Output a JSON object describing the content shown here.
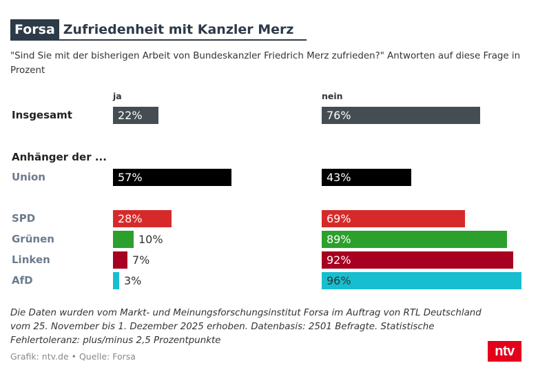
{
  "header": {
    "tag": "Forsa",
    "title": "Zufriedenheit mit Kanzler Merz",
    "subtitle": "\"Sind Sie mit der bisherigen Arbeit von Bundeskanzler Friedrich Merz zufrieden?\" Antworten auf diese Frage in Prozent"
  },
  "chart_data": {
    "type": "bar",
    "orientation": "horizontal",
    "title": "Zufriedenheit mit Kanzler Merz",
    "unit": "%",
    "series": [
      {
        "name": "ja"
      },
      {
        "name": "nein"
      }
    ],
    "group_label": "Anhänger der ...",
    "rows": [
      {
        "label": "Insgesamt",
        "label_color": "#222222",
        "ja": 22,
        "nein": 76,
        "color": "#444d52",
        "ja_text": "22%",
        "nein_text": "76%",
        "ja_label_color": "#ffffff",
        "nein_label_color": "#ffffff"
      },
      {
        "label": "Union",
        "label_color": "#6b7b8c",
        "ja": 57,
        "nein": 43,
        "color": "#000000",
        "ja_text": "57%",
        "nein_text": "43%",
        "ja_label_color": "#ffffff",
        "nein_label_color": "#ffffff"
      },
      {
        "label": "SPD",
        "label_color": "#6b7b8c",
        "ja": 28,
        "nein": 69,
        "color": "#d62a2a",
        "ja_text": "28%",
        "nein_text": "69%",
        "ja_label_color": "#ffffff",
        "nein_label_color": "#ffffff"
      },
      {
        "label": "Grünen",
        "label_color": "#6b7b8c",
        "ja": 10,
        "nein": 89,
        "color": "#2ca02c",
        "ja_text": "10%",
        "nein_text": "89%",
        "ja_label_color": "#333333",
        "nein_label_color": "#ffffff"
      },
      {
        "label": "Linken",
        "label_color": "#6b7b8c",
        "ja": 7,
        "nein": 92,
        "color": "#a80020",
        "ja_text": "7%",
        "nein_text": "92%",
        "ja_label_color": "#333333",
        "nein_label_color": "#ffffff"
      },
      {
        "label": "AfD",
        "label_color": "#6b7b8c",
        "ja": 3,
        "nein": 96,
        "color": "#17becf",
        "ja_text": "3%",
        "nein_text": "96%",
        "ja_label_color": "#333333",
        "nein_label_color": "#333333"
      }
    ],
    "xlim": [
      0,
      100
    ]
  },
  "footer": {
    "note": "Die Daten wurden vom Markt- und Meinungsforschungsinstitut Forsa im Auftrag von RTL Deutschland vom 25. November bis 1. Dezember 2025 erhoben. Datenbasis: 2501 Befragte. Statistische Fehlertoleranz: plus/minus 2,5 Prozentpunkte",
    "credit": "Grafik: ntv.de • Quelle: Forsa",
    "logo": "ntv"
  }
}
